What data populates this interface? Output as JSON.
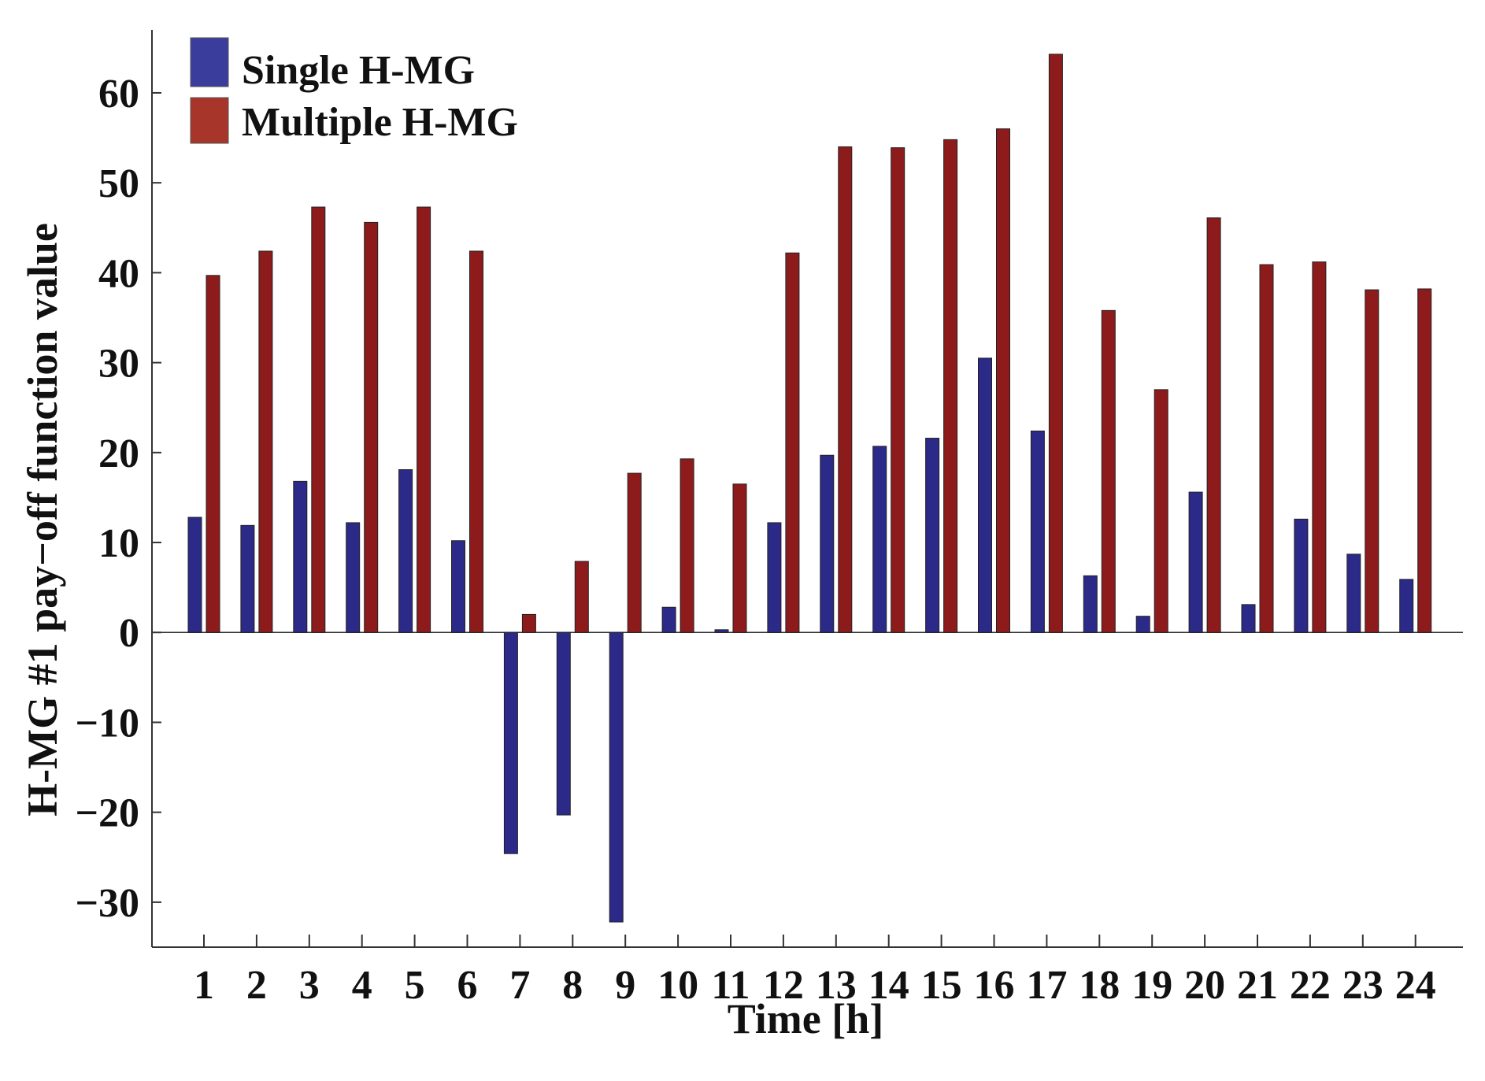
{
  "chart_data": {
    "type": "bar",
    "title": "",
    "xlabel": "Time [h]",
    "ylabel": "H-MG #1 pay−off function value",
    "ylim": [
      -35,
      67
    ],
    "yticks": [
      -30,
      -20,
      -10,
      0,
      10,
      20,
      30,
      40,
      50,
      60
    ],
    "ytick_labels": [
      "−30",
      "−20",
      "−10",
      "0",
      "10",
      "20",
      "30",
      "40",
      "50",
      "60"
    ],
    "categories": [
      "1",
      "2",
      "3",
      "4",
      "5",
      "6",
      "7",
      "8",
      "9",
      "10",
      "11",
      "12",
      "13",
      "14",
      "15",
      "16",
      "17",
      "18",
      "19",
      "20",
      "21",
      "22",
      "23",
      "24"
    ],
    "series": [
      {
        "name": "Single H-MG",
        "color": "#2b2a88",
        "values": [
          12.8,
          11.9,
          16.8,
          12.2,
          18.1,
          10.2,
          -24.6,
          -20.3,
          -32.2,
          2.8,
          0.3,
          12.2,
          19.7,
          20.7,
          21.6,
          30.5,
          22.4,
          6.3,
          1.8,
          15.6,
          3.1,
          12.6,
          8.7,
          5.9
        ]
      },
      {
        "name": "Multiple H-MG",
        "color": "#8e1b1b",
        "values": [
          39.7,
          42.4,
          47.3,
          45.6,
          47.3,
          42.4,
          2.0,
          7.9,
          17.7,
          19.3,
          16.5,
          42.2,
          54.0,
          53.9,
          54.8,
          56.0,
          64.3,
          35.8,
          27.0,
          46.1,
          40.9,
          41.2,
          38.1,
          38.2
        ]
      }
    ],
    "legend_position": "top-left",
    "grid": false
  }
}
